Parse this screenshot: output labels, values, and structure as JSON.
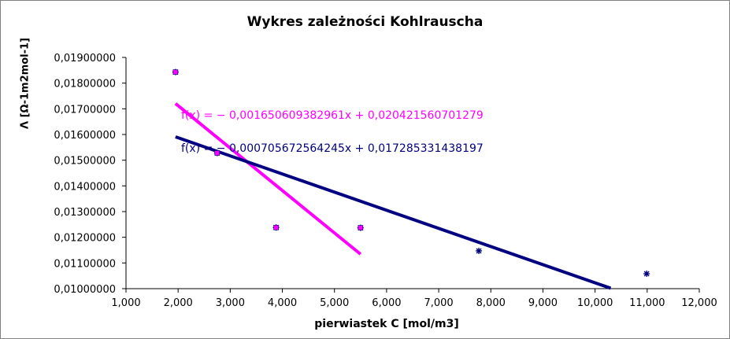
{
  "chart_data": {
    "type": "scatter",
    "title": "Wykres zależności Kohlrauscha",
    "xlabel": "pierwiastek C [mol/m3]",
    "ylabel": "Λ [Ω-1m2mol-1]",
    "xlim": [
      1,
      12
    ],
    "ylim": [
      0.01,
      0.019
    ],
    "x_ticks": [
      "1,000",
      "2,000",
      "3,000",
      "4,000",
      "5,000",
      "6,000",
      "7,000",
      "8,000",
      "9,000",
      "10,000",
      "11,000",
      "12,000"
    ],
    "y_ticks": [
      "0,01000000",
      "0,01100000",
      "0,01200000",
      "0,01300000",
      "0,01400000",
      "0,01500000",
      "0,01600000",
      "0,01700000",
      "0,01800000",
      "0,01900000"
    ],
    "grid": false,
    "series": [
      {
        "marker": "star",
        "color": "#000080",
        "points": [
          [
            1.95,
            0.01843
          ],
          [
            2.75,
            0.01528
          ],
          [
            3.88,
            0.01238
          ],
          [
            5.5,
            0.01237
          ],
          [
            7.77,
            0.01147
          ],
          [
            10.99,
            0.01058
          ]
        ]
      },
      {
        "marker": "square",
        "color": "#ff00ff",
        "points": [
          [
            1.95,
            0.01843
          ],
          [
            2.75,
            0.01528
          ],
          [
            3.88,
            0.01238
          ],
          [
            5.5,
            0.01237
          ]
        ]
      }
    ],
    "trendlines": [
      {
        "color": "#ff00ff",
        "x_range": [
          1.95,
          5.5
        ],
        "slope": -0.00165060938296,
        "intercept": 0.02042156070128,
        "label": "f(x) = − 0,001650609382961x + 0,020421560701279"
      },
      {
        "color": "#000080",
        "x_range": [
          1.95,
          10.3
        ],
        "slope": -0.00070567256424,
        "intercept": 0.0172853314382,
        "label": "f(x) = − 0,000705672564245x + 0,017285331438197"
      }
    ]
  }
}
